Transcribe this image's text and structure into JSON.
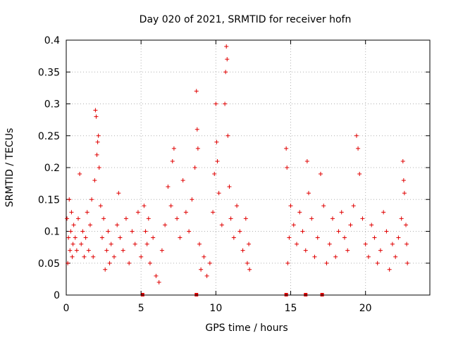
{
  "chart_data": {
    "type": "scatter",
    "title": "Day 020 of 2021, SRMTID for receiver hofn",
    "xlabel": "GPS time / hours",
    "ylabel": "SRMTID / TECUs",
    "xlim": [
      0,
      24.3
    ],
    "ylim": [
      0,
      0.4
    ],
    "xticks": [
      0,
      5,
      10,
      15,
      20
    ],
    "xtick_labels": [
      "0",
      "5",
      "10",
      "15",
      "20"
    ],
    "yticks": [
      0,
      0.05,
      0.1,
      0.15,
      0.2,
      0.25,
      0.3,
      0.35,
      0.4
    ],
    "ytick_labels": [
      "0",
      "0.05",
      "0.1",
      "0.15",
      "0.2",
      "0.25",
      "0.3",
      "0.35",
      "0.4"
    ],
    "grid": true,
    "marker": "plus",
    "color": "#e00000",
    "gaps": [
      [
        12.3,
        14.6
      ]
    ],
    "zero_markers_x": [
      5.1,
      8.7,
      14.7,
      16.0,
      17.1
    ],
    "series": [
      {
        "name": "SRMTID",
        "points": [
          [
            0.05,
            0.12
          ],
          [
            0.1,
            0.05
          ],
          [
            0.15,
            0.09
          ],
          [
            0.2,
            0.15
          ],
          [
            0.25,
            0.07
          ],
          [
            0.3,
            0.1
          ],
          [
            0.35,
            0.13
          ],
          [
            0.4,
            0.06
          ],
          [
            0.45,
            0.08
          ],
          [
            0.5,
            0.11
          ],
          [
            0.6,
            0.09
          ],
          [
            0.7,
            0.07
          ],
          [
            0.8,
            0.12
          ],
          [
            0.9,
            0.19
          ],
          [
            1.0,
            0.08
          ],
          [
            1.1,
            0.1
          ],
          [
            1.2,
            0.06
          ],
          [
            1.3,
            0.09
          ],
          [
            1.4,
            0.13
          ],
          [
            1.5,
            0.07
          ],
          [
            1.6,
            0.11
          ],
          [
            1.7,
            0.15
          ],
          [
            1.8,
            0.06
          ],
          [
            1.9,
            0.18
          ],
          [
            1.95,
            0.29
          ],
          [
            2.0,
            0.28
          ],
          [
            2.05,
            0.22
          ],
          [
            2.1,
            0.24
          ],
          [
            2.15,
            0.25
          ],
          [
            2.2,
            0.2
          ],
          [
            2.3,
            0.14
          ],
          [
            2.4,
            0.09
          ],
          [
            2.5,
            0.12
          ],
          [
            2.6,
            0.04
          ],
          [
            2.7,
            0.07
          ],
          [
            2.8,
            0.1
          ],
          [
            2.9,
            0.05
          ],
          [
            3.0,
            0.08
          ],
          [
            3.2,
            0.06
          ],
          [
            3.4,
            0.11
          ],
          [
            3.5,
            0.16
          ],
          [
            3.6,
            0.09
          ],
          [
            3.8,
            0.07
          ],
          [
            4.0,
            0.12
          ],
          [
            4.2,
            0.05
          ],
          [
            4.4,
            0.1
          ],
          [
            4.6,
            0.08
          ],
          [
            4.8,
            0.13
          ],
          [
            5.0,
            0.06
          ],
          [
            5.2,
            0.14
          ],
          [
            5.3,
            0.1
          ],
          [
            5.4,
            0.08
          ],
          [
            5.5,
            0.12
          ],
          [
            5.6,
            0.05
          ],
          [
            5.8,
            0.09
          ],
          [
            6.0,
            0.03
          ],
          [
            6.2,
            0.02
          ],
          [
            6.4,
            0.07
          ],
          [
            6.6,
            0.11
          ],
          [
            6.8,
            0.17
          ],
          [
            7.0,
            0.14
          ],
          [
            7.1,
            0.21
          ],
          [
            7.2,
            0.23
          ],
          [
            7.4,
            0.12
          ],
          [
            7.6,
            0.09
          ],
          [
            7.8,
            0.18
          ],
          [
            8.0,
            0.13
          ],
          [
            8.2,
            0.1
          ],
          [
            8.4,
            0.15
          ],
          [
            8.6,
            0.2
          ],
          [
            8.7,
            0.32
          ],
          [
            8.75,
            0.26
          ],
          [
            8.8,
            0.23
          ],
          [
            8.9,
            0.08
          ],
          [
            9.0,
            0.04
          ],
          [
            9.2,
            0.06
          ],
          [
            9.4,
            0.03
          ],
          [
            9.6,
            0.05
          ],
          [
            9.8,
            0.13
          ],
          [
            9.9,
            0.19
          ],
          [
            10.0,
            0.3
          ],
          [
            10.05,
            0.24
          ],
          [
            10.1,
            0.21
          ],
          [
            10.2,
            0.16
          ],
          [
            10.4,
            0.11
          ],
          [
            10.6,
            0.3
          ],
          [
            10.65,
            0.35
          ],
          [
            10.7,
            0.39
          ],
          [
            10.75,
            0.37
          ],
          [
            10.8,
            0.25
          ],
          [
            10.9,
            0.17
          ],
          [
            11.0,
            0.12
          ],
          [
            11.2,
            0.09
          ],
          [
            11.4,
            0.14
          ],
          [
            11.6,
            0.1
          ],
          [
            11.8,
            0.07
          ],
          [
            12.0,
            0.12
          ],
          [
            12.1,
            0.05
          ],
          [
            12.2,
            0.08
          ],
          [
            12.25,
            0.04
          ],
          [
            14.7,
            0.23
          ],
          [
            14.75,
            0.2
          ],
          [
            14.8,
            0.05
          ],
          [
            14.9,
            0.09
          ],
          [
            15.0,
            0.14
          ],
          [
            15.2,
            0.11
          ],
          [
            15.4,
            0.08
          ],
          [
            15.6,
            0.13
          ],
          [
            15.8,
            0.1
          ],
          [
            16.0,
            0.07
          ],
          [
            16.1,
            0.21
          ],
          [
            16.2,
            0.16
          ],
          [
            16.4,
            0.12
          ],
          [
            16.6,
            0.06
          ],
          [
            16.8,
            0.09
          ],
          [
            17.0,
            0.19
          ],
          [
            17.2,
            0.14
          ],
          [
            17.4,
            0.05
          ],
          [
            17.6,
            0.08
          ],
          [
            17.8,
            0.12
          ],
          [
            18.0,
            0.06
          ],
          [
            18.2,
            0.1
          ],
          [
            18.4,
            0.13
          ],
          [
            18.6,
            0.09
          ],
          [
            18.8,
            0.07
          ],
          [
            19.0,
            0.11
          ],
          [
            19.2,
            0.14
          ],
          [
            19.4,
            0.25
          ],
          [
            19.5,
            0.23
          ],
          [
            19.6,
            0.19
          ],
          [
            19.8,
            0.12
          ],
          [
            20.0,
            0.08
          ],
          [
            20.2,
            0.06
          ],
          [
            20.4,
            0.11
          ],
          [
            20.6,
            0.09
          ],
          [
            20.8,
            0.05
          ],
          [
            21.0,
            0.07
          ],
          [
            21.2,
            0.13
          ],
          [
            21.4,
            0.1
          ],
          [
            21.6,
            0.04
          ],
          [
            21.8,
            0.08
          ],
          [
            22.0,
            0.06
          ],
          [
            22.2,
            0.09
          ],
          [
            22.4,
            0.12
          ],
          [
            22.5,
            0.21
          ],
          [
            22.55,
            0.18
          ],
          [
            22.6,
            0.16
          ],
          [
            22.7,
            0.11
          ],
          [
            22.75,
            0.08
          ],
          [
            22.8,
            0.05
          ]
        ]
      }
    ]
  }
}
